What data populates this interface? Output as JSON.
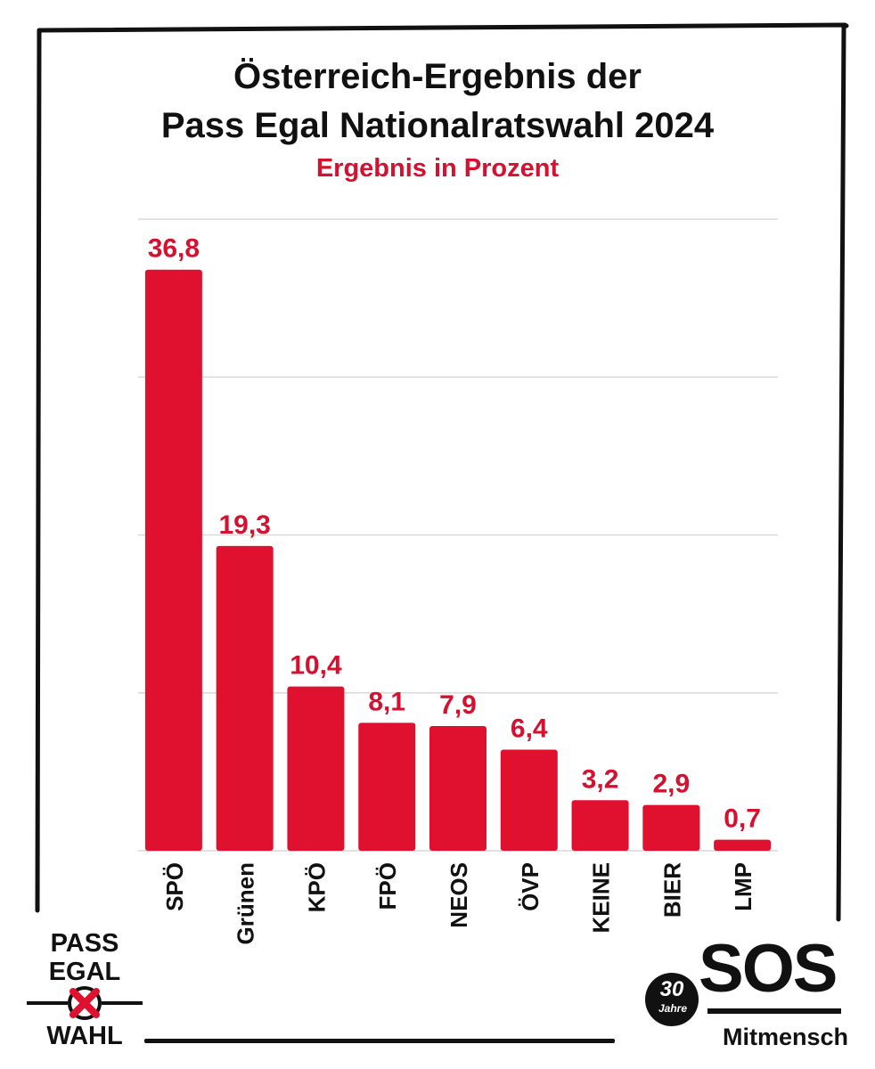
{
  "title_line1": "Österreich-Ergebnis der",
  "title_line2": "Pass Egal Nationalratswahl 2024",
  "subtitle": "Ergebnis in Prozent",
  "colors": {
    "bar": "#e0112f",
    "label": "#d5112f",
    "text": "#111111",
    "grid": "#d9d9d9"
  },
  "chart_data": {
    "type": "bar",
    "title": "Österreich-Ergebnis der Pass Egal Nationalratswahl 2024",
    "subtitle": "Ergebnis in Prozent",
    "categories": [
      "SPÖ",
      "Grünen",
      "KPÖ",
      "FPÖ",
      "NEOS",
      "ÖVP",
      "KEINE",
      "BIER",
      "LMP"
    ],
    "values": [
      36.8,
      19.3,
      10.4,
      8.1,
      7.9,
      6.4,
      3.2,
      2.9,
      0.7
    ],
    "value_labels": [
      "36,8",
      "19,3",
      "10,4",
      "8,1",
      "7,9",
      "6,4",
      "3,2",
      "2,9",
      "0,7"
    ],
    "xlabel": "",
    "ylabel": "",
    "ylim": [
      0,
      40
    ],
    "gridlines": [
      10,
      20,
      30,
      40
    ],
    "grid": true,
    "category_label_orientation": "vertical"
  },
  "logos": {
    "pass_egal": {
      "line1": "PASS",
      "line2": "EGAL",
      "line3": "WAHL",
      "icon": "ballot-x-icon"
    },
    "sos": {
      "word": "SOS",
      "years_number": "30",
      "years_text": "Jahre",
      "subtitle": "Mitmensch"
    }
  }
}
